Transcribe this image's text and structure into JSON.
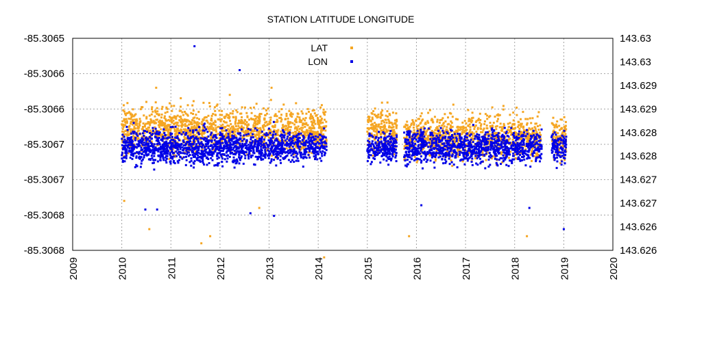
{
  "chart_data": {
    "type": "scatter",
    "title": "STATION LATITUDE LONGITUDE",
    "x_axis": {
      "range": [
        2009,
        2020
      ],
      "tick_labels": [
        "2009",
        "2010",
        "2011",
        "2012",
        "2013",
        "2014",
        "2015",
        "2016",
        "2017",
        "2018",
        "2019",
        "2020"
      ]
    },
    "y_left": {
      "range": [
        -85.3068,
        -85.3065
      ],
      "tick_labels": [
        "-85.3065",
        "-85.3066",
        "-85.3066",
        "-85.3067",
        "-85.3067",
        "-85.3068",
        "-85.3068"
      ]
    },
    "y_right": {
      "range": [
        143.626,
        143.63
      ],
      "tick_labels": [
        "143.63",
        "143.63",
        "143.629",
        "143.629",
        "143.628",
        "143.628",
        "143.627",
        "143.627",
        "143.626",
        "143.626"
      ]
    },
    "grid": true,
    "legend_position": "top-center",
    "series": [
      {
        "name": "LAT",
        "axis": "left",
        "color": "#f5a623",
        "segments": [
          {
            "x_start": 2010.0,
            "x_end": 2014.17,
            "center": -85.30663,
            "spread": 2.8e-05
          },
          {
            "x_start": 2015.0,
            "x_end": 2015.6,
            "center": -85.30663,
            "spread": 2.5e-05
          },
          {
            "x_start": 2015.75,
            "x_end": 2018.55,
            "center": -85.30664,
            "spread": 2.8e-05
          },
          {
            "x_start": 2018.75,
            "x_end": 2019.05,
            "center": -85.30664,
            "spread": 2.5e-05
          }
        ],
        "outliers": [
          {
            "x": 2010.05,
            "y": -85.30673
          },
          {
            "x": 2010.5,
            "y": -85.30659
          },
          {
            "x": 2010.56,
            "y": -85.30677
          },
          {
            "x": 2010.7,
            "y": -85.30657
          },
          {
            "x": 2011.62,
            "y": -85.30679
          },
          {
            "x": 2011.8,
            "y": -85.30678
          },
          {
            "x": 2012.2,
            "y": -85.30658
          },
          {
            "x": 2012.8,
            "y": -85.30674
          },
          {
            "x": 2013.05,
            "y": -85.30657
          },
          {
            "x": 2014.12,
            "y": -85.30681
          },
          {
            "x": 2015.85,
            "y": -85.30678
          },
          {
            "x": 2017.5,
            "y": -85.30661
          },
          {
            "x": 2018.25,
            "y": -85.30678
          }
        ]
      },
      {
        "name": "LON",
        "axis": "right",
        "color": "#0000e6",
        "segments": [
          {
            "x_start": 2010.0,
            "x_end": 2014.17,
            "center": 143.62795,
            "spread": 0.00028
          },
          {
            "x_start": 2015.0,
            "x_end": 2015.6,
            "center": 143.62795,
            "spread": 0.00025
          },
          {
            "x_start": 2015.75,
            "x_end": 2018.55,
            "center": 143.62795,
            "spread": 0.00028
          },
          {
            "x_start": 2018.75,
            "x_end": 2019.05,
            "center": 143.62795,
            "spread": 0.00025
          }
        ],
        "outliers": [
          {
            "x": 2011.48,
            "y": 143.62985
          },
          {
            "x": 2012.4,
            "y": 143.6294
          },
          {
            "x": 2013.1,
            "y": 143.62665
          },
          {
            "x": 2012.62,
            "y": 143.6267
          },
          {
            "x": 2010.48,
            "y": 143.62677
          },
          {
            "x": 2010.72,
            "y": 143.62677
          },
          {
            "x": 2016.1,
            "y": 143.62685
          },
          {
            "x": 2018.3,
            "y": 143.6268
          },
          {
            "x": 2019.0,
            "y": 143.6264
          }
        ]
      }
    ]
  }
}
